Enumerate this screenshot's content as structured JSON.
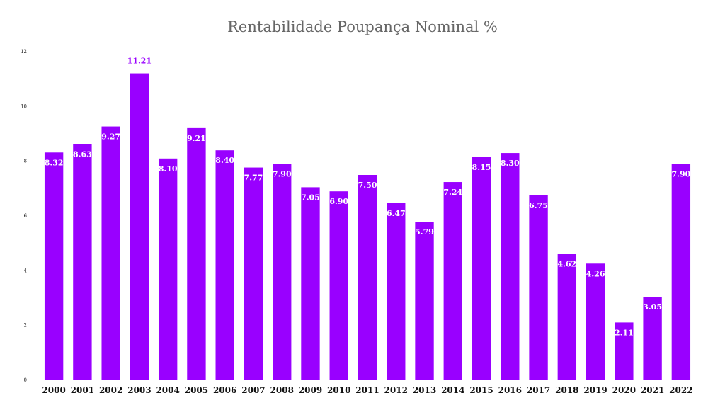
{
  "chart_data": {
    "type": "bar",
    "title": "Rentabilidade Poupança Nominal %",
    "xlabel": "",
    "ylabel": "",
    "ylim": [
      0,
      12
    ],
    "yticks": [
      0,
      2,
      4,
      6,
      8,
      10,
      12
    ],
    "grid": false,
    "bar_color": "#9900ff",
    "inside_label_color": "#ffffff",
    "outside_label_color": "#9900ff",
    "categories": [
      "2000",
      "2001",
      "2002",
      "2003",
      "2004",
      "2005",
      "2006",
      "2007",
      "2008",
      "2009",
      "2010",
      "2011",
      "2012",
      "2013",
      "2014",
      "2015",
      "2016",
      "2017",
      "2018",
      "2019",
      "2020",
      "2021",
      "2022"
    ],
    "values": [
      8.32,
      8.63,
      9.27,
      11.21,
      8.1,
      9.21,
      8.4,
      7.77,
      7.9,
      7.05,
      6.9,
      7.5,
      6.47,
      5.79,
      7.24,
      8.15,
      8.3,
      6.75,
      4.62,
      4.26,
      2.11,
      3.05,
      7.9
    ],
    "data_labels": [
      "8.32",
      "8.63",
      "9.27",
      "11.21",
      "8.10",
      "9.21",
      "8.40",
      "7.77",
      "7.90",
      "7.05",
      "6.90",
      "7.50",
      "6.47",
      "5.79",
      "7.24",
      "8.15",
      "8.30",
      "6.75",
      "4.62",
      "4.26",
      "2.11",
      "3.05",
      "7.90"
    ]
  }
}
